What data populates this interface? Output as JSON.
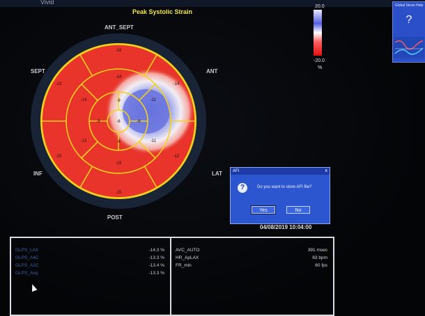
{
  "header": {
    "logo": "Vivid",
    "title": "Peak Systolic Strain"
  },
  "bullseye": {
    "labels": {
      "ant_sept": "ANT_SEPT",
      "sept": "SEPT",
      "ant": "ANT",
      "inf": "INF",
      "lat": "LAT",
      "post": "POST"
    },
    "segments": [
      {
        "id": "1",
        "value": "-16"
      },
      {
        "id": "2",
        "value": "-14"
      },
      {
        "id": "3",
        "value": "-12"
      },
      {
        "id": "4",
        "value": "-15"
      },
      {
        "id": "5",
        "value": "-15"
      },
      {
        "id": "6",
        "value": "-13"
      },
      {
        "id": "7",
        "value": "-14"
      },
      {
        "id": "8",
        "value": "-11"
      },
      {
        "id": "9",
        "value": "-11"
      },
      {
        "id": "10",
        "value": "-15"
      },
      {
        "id": "11",
        "value": "-13"
      },
      {
        "id": "12",
        "value": "-14"
      },
      {
        "id": "13",
        "value": "-9"
      },
      {
        "id": "14",
        "value": "-6"
      },
      {
        "id": "15",
        "value": "-6"
      },
      {
        "id": "16",
        "value": "-8"
      },
      {
        "id": "17",
        "value": "-6"
      }
    ]
  },
  "colors": {
    "red": "#e8342a",
    "blue": "#4a5cd8",
    "yellow": "#f2d21c",
    "dialog": "#2c55d0"
  },
  "scale": {
    "max": "20.0",
    "min": "-20.0",
    "unit": "%"
  },
  "help": {
    "title": "Global Strain Help",
    "glyph": "?"
  },
  "dialog": {
    "title": "AFI",
    "message": "Do you want to store AFI file?",
    "yes": "Yes",
    "no": "No",
    "close": "x"
  },
  "timestamp": "04/08/2019 10:04:00",
  "results_left": [
    {
      "label": "GLPS_LAX",
      "value": "-14.3 %"
    },
    {
      "label": "GLPS_A4C",
      "value": "-13.3 %"
    },
    {
      "label": "GLPS_A2C",
      "value": "-13.4 %"
    },
    {
      "label": "GLPS_Avg",
      "value": "-13.3 %"
    }
  ],
  "results_right": [
    {
      "label": "AVC_AUTO",
      "value": "391 msec"
    },
    {
      "label": "HR_ApLAX",
      "value": "63 bpm"
    },
    {
      "label": "FR_min",
      "value": "60 fps"
    }
  ]
}
